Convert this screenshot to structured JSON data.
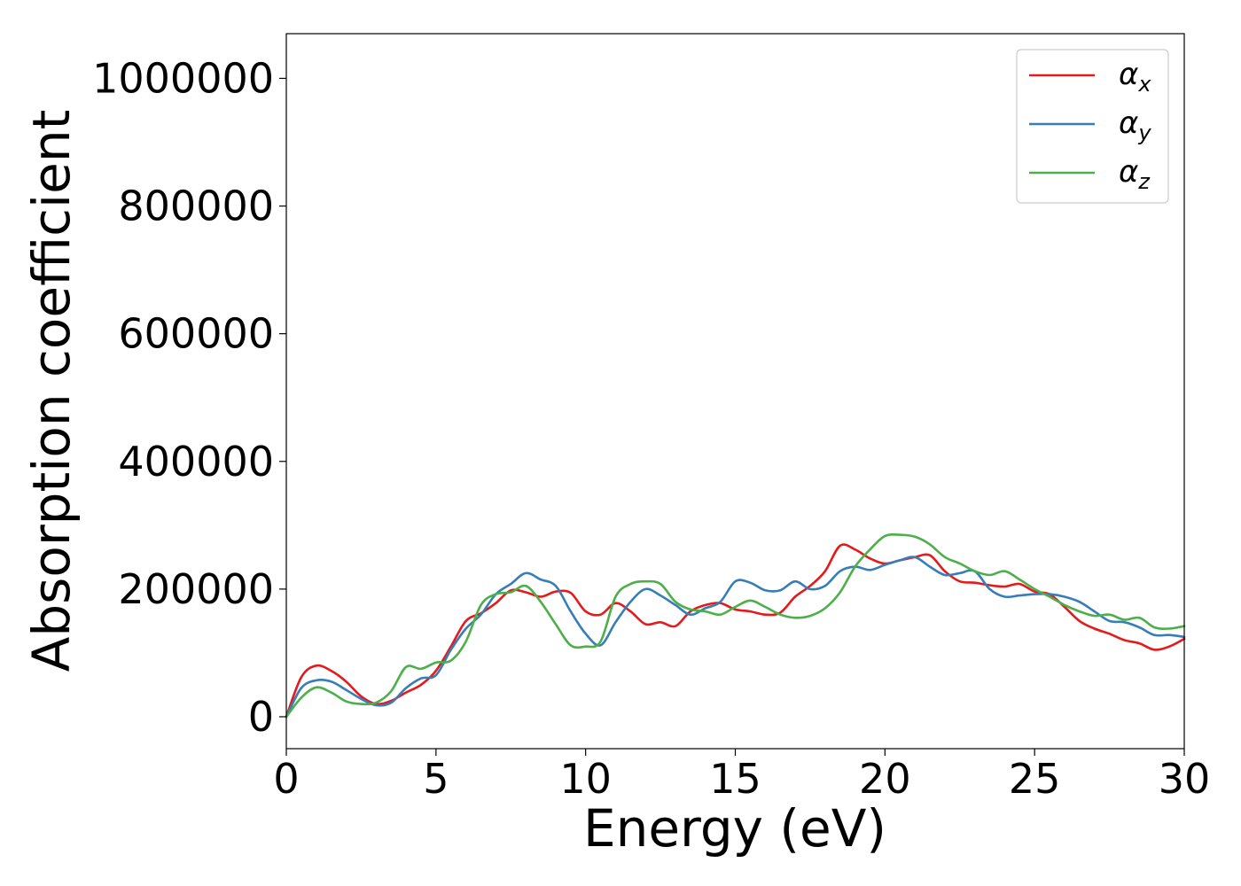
{
  "chart_data": {
    "type": "line",
    "xlabel": "Energy (eV)",
    "ylabel": "Absorption coefficient",
    "xlim": [
      0,
      30
    ],
    "ylim": [
      -50000,
      1070000
    ],
    "xticks": [
      0,
      5,
      10,
      15,
      20,
      25,
      30
    ],
    "yticks": [
      0,
      200000,
      400000,
      600000,
      800000,
      1000000
    ],
    "xtick_labels": [
      "0",
      "5",
      "10",
      "15",
      "20",
      "25",
      "30"
    ],
    "ytick_labels": [
      "0",
      "200000",
      "400000",
      "600000",
      "800000",
      "1000000"
    ],
    "grid": false,
    "legend_position": "top-right",
    "series": [
      {
        "name": "α",
        "subscript": "x",
        "color": "#e41a1c",
        "x": [
          0,
          0.5,
          1,
          1.5,
          2,
          2.5,
          3,
          3.5,
          4,
          4.5,
          5,
          5.5,
          6,
          6.5,
          7,
          7.5,
          8,
          8.5,
          9,
          9.5,
          10,
          10.5,
          11,
          11.5,
          12,
          12.5,
          13,
          13.5,
          14,
          14.5,
          15,
          15.5,
          16,
          16.5,
          17,
          17.5,
          18,
          18.5,
          19,
          19.5,
          20,
          20.5,
          21,
          21.5,
          22,
          22.5,
          23,
          23.5,
          24,
          24.5,
          25,
          25.5,
          26,
          26.5,
          27,
          27.5,
          28,
          28.5,
          29,
          29.5,
          30
        ],
        "y": [
          0,
          62000,
          80000,
          72000,
          55000,
          32000,
          20000,
          25000,
          38000,
          50000,
          72000,
          110000,
          150000,
          162000,
          178000,
          198000,
          195000,
          188000,
          196000,
          194000,
          165000,
          160000,
          178000,
          165000,
          145000,
          148000,
          142000,
          165000,
          175000,
          178000,
          168000,
          165000,
          160000,
          163000,
          188000,
          205000,
          228000,
          268000,
          262000,
          248000,
          240000,
          245000,
          250000,
          253000,
          228000,
          212000,
          210000,
          206000,
          204000,
          208000,
          196000,
          192000,
          172000,
          150000,
          138000,
          130000,
          120000,
          115000,
          105000,
          110000,
          122000
        ]
      },
      {
        "name": "α",
        "subscript": "y",
        "color": "#377eb8",
        "x": [
          0,
          0.5,
          1,
          1.5,
          2,
          2.5,
          3,
          3.5,
          4,
          4.5,
          5,
          5.5,
          6,
          6.5,
          7,
          7.5,
          8,
          8.5,
          9,
          9.5,
          10,
          10.5,
          11,
          11.5,
          12,
          12.5,
          13,
          13.5,
          14,
          14.5,
          15,
          15.5,
          16,
          16.5,
          17,
          17.5,
          18,
          18.5,
          19,
          19.5,
          20,
          20.5,
          21,
          21.5,
          22,
          22.5,
          23,
          23.5,
          24,
          24.5,
          25,
          25.5,
          26,
          26.5,
          27,
          27.5,
          28,
          28.5,
          29,
          29.5,
          30
        ],
        "y": [
          0,
          45000,
          57000,
          55000,
          42000,
          28000,
          18000,
          22000,
          45000,
          60000,
          65000,
          105000,
          138000,
          160000,
          192000,
          208000,
          225000,
          215000,
          205000,
          165000,
          130000,
          112000,
          148000,
          180000,
          200000,
          190000,
          175000,
          160000,
          170000,
          180000,
          212000,
          210000,
          198000,
          198000,
          212000,
          200000,
          205000,
          228000,
          235000,
          230000,
          238000,
          245000,
          250000,
          235000,
          222000,
          225000,
          228000,
          200000,
          188000,
          190000,
          192000,
          192000,
          188000,
          180000,
          165000,
          150000,
          148000,
          140000,
          128000,
          128000,
          125000
        ]
      },
      {
        "name": "α",
        "subscript": "z",
        "color": "#4daf4a",
        "x": [
          0,
          0.5,
          1,
          1.5,
          2,
          2.5,
          3,
          3.5,
          4,
          4.5,
          5,
          5.5,
          6,
          6.5,
          7,
          7.5,
          8,
          8.5,
          9,
          9.5,
          10,
          10.5,
          11,
          11.5,
          12,
          12.5,
          13,
          13.5,
          14,
          14.5,
          15,
          15.5,
          16,
          16.5,
          17,
          17.5,
          18,
          18.5,
          19,
          19.5,
          20,
          20.5,
          21,
          21.5,
          22,
          22.5,
          23,
          23.5,
          24,
          24.5,
          25,
          25.5,
          26,
          26.5,
          27,
          27.5,
          28,
          28.5,
          29,
          29.5,
          30
        ],
        "y": [
          0,
          30000,
          46000,
          38000,
          24000,
          20000,
          22000,
          40000,
          78000,
          75000,
          85000,
          88000,
          118000,
          175000,
          192000,
          195000,
          205000,
          180000,
          145000,
          112000,
          110000,
          118000,
          188000,
          208000,
          212000,
          208000,
          180000,
          168000,
          165000,
          160000,
          172000,
          182000,
          172000,
          160000,
          155000,
          158000,
          170000,
          195000,
          235000,
          262000,
          283000,
          285000,
          282000,
          270000,
          250000,
          240000,
          228000,
          222000,
          228000,
          215000,
          200000,
          188000,
          175000,
          165000,
          158000,
          160000,
          152000,
          155000,
          140000,
          138000,
          142000
        ]
      }
    ]
  }
}
